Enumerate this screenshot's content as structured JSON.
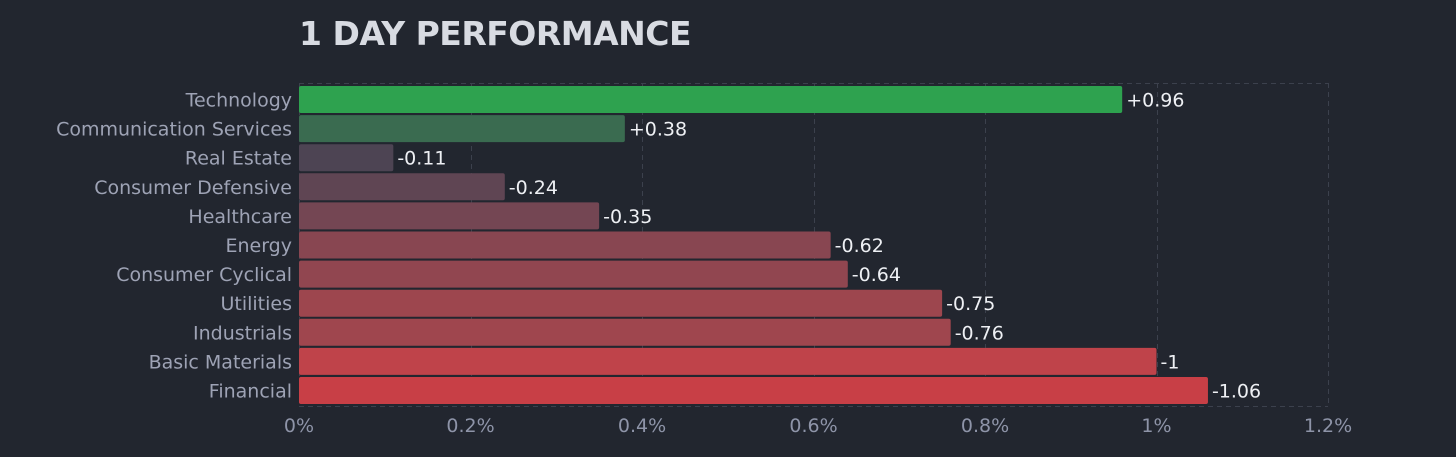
{
  "chart_data": {
    "type": "bar",
    "orientation": "horizontal",
    "title": "1 DAY PERFORMANCE",
    "xlabel": "",
    "ylabel": "",
    "xlim": [
      0,
      1.2
    ],
    "x_ticks": [
      0,
      0.2,
      0.4,
      0.6,
      0.8,
      1,
      1.2
    ],
    "x_tick_labels": [
      "0%",
      "0.2%",
      "0.4%",
      "0.6%",
      "0.8%",
      "1%",
      "1.2%"
    ],
    "grid": true,
    "categories": [
      "Technology",
      "Communication Services",
      "Real Estate",
      "Consumer Defensive",
      "Healthcare",
      "Energy",
      "Consumer Cyclical",
      "Utilities",
      "Industrials",
      "Basic Materials",
      "Financial"
    ],
    "values": [
      0.96,
      0.38,
      -0.11,
      -0.24,
      -0.35,
      -0.62,
      -0.64,
      -0.75,
      -0.76,
      -1,
      -1.06
    ],
    "value_labels": [
      "+0.96",
      "+0.38",
      "-0.11",
      "-0.24",
      "-0.35",
      "-0.62",
      "-0.64",
      "-0.75",
      "-0.76",
      "-1",
      "-1.06"
    ],
    "colors": [
      "#2ea24f",
      "#3a6b50",
      "#4d4453",
      "#5f4553",
      "#744653",
      "#884651",
      "#914650",
      "#9d464e",
      "#9f464e",
      "#bf434a",
      "#c83f46"
    ]
  }
}
